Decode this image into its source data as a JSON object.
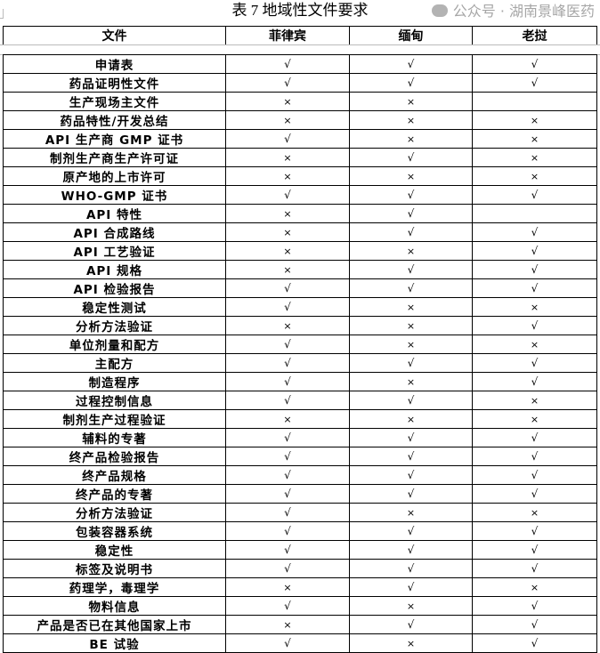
{
  "title": "表 7 地域性文件要求",
  "columns": [
    "文件",
    "菲律宾",
    "缅甸",
    "老挝"
  ],
  "marks": {
    "yes": "√",
    "no": "×"
  },
  "rows": [
    {
      "name": "申请表",
      "values": [
        "√",
        "√",
        "√"
      ]
    },
    {
      "name": "药品证明性文件",
      "values": [
        "√",
        "√",
        "√"
      ]
    },
    {
      "name": "生产现场主文件",
      "values": [
        "×",
        "×",
        ""
      ]
    },
    {
      "name": "药品特性/开发总结",
      "values": [
        "×",
        "×",
        "×"
      ]
    },
    {
      "name": "API 生产商 GMP 证书",
      "values": [
        "√",
        "×",
        "×"
      ]
    },
    {
      "name": "制剂生产商生产许可证",
      "values": [
        "×",
        "√",
        "×"
      ]
    },
    {
      "name": "原产地的上市许可",
      "values": [
        "×",
        "×",
        "×"
      ]
    },
    {
      "name": "WHO-GMP 证书",
      "values": [
        "√",
        "√",
        "√"
      ]
    },
    {
      "name": "API 特性",
      "values": [
        "×",
        "√",
        ""
      ]
    },
    {
      "name": "API 合成路线",
      "values": [
        "×",
        "√",
        "√"
      ]
    },
    {
      "name": "API 工艺验证",
      "values": [
        "×",
        "×",
        "√"
      ]
    },
    {
      "name": "API 规格",
      "values": [
        "×",
        "√",
        "√"
      ]
    },
    {
      "name": "API 检验报告",
      "values": [
        "√",
        "√",
        "√"
      ]
    },
    {
      "name": "稳定性测试",
      "values": [
        "√",
        "×",
        "×"
      ]
    },
    {
      "name": "分析方法验证",
      "values": [
        "×",
        "×",
        "√"
      ]
    },
    {
      "name": "单位剂量和配方",
      "values": [
        "√",
        "×",
        "×"
      ]
    },
    {
      "name": "主配方",
      "values": [
        "√",
        "√",
        "√"
      ]
    },
    {
      "name": "制造程序",
      "values": [
        "√",
        "×",
        "√"
      ]
    },
    {
      "name": "过程控制信息",
      "values": [
        "√",
        "√",
        "×"
      ]
    },
    {
      "name": "制剂生产过程验证",
      "values": [
        "×",
        "×",
        "×"
      ]
    },
    {
      "name": "辅料的专著",
      "values": [
        "√",
        "√",
        "√"
      ]
    },
    {
      "name": "终产品检验报告",
      "values": [
        "√",
        "√",
        "√"
      ]
    },
    {
      "name": "终产品规格",
      "values": [
        "√",
        "√",
        "√"
      ]
    },
    {
      "name": "终产品的专著",
      "values": [
        "√",
        "√",
        "√"
      ]
    },
    {
      "name": "分析方法验证",
      "values": [
        "√",
        "×",
        "×"
      ]
    },
    {
      "name": "包装容器系统",
      "values": [
        "√",
        "√",
        "√"
      ]
    },
    {
      "name": "稳定性",
      "values": [
        "√",
        "√",
        "√"
      ]
    },
    {
      "name": "标签及说明书",
      "values": [
        "√",
        "√",
        "√"
      ]
    },
    {
      "name": "药理学，毒理学",
      "values": [
        "×",
        "√",
        "×"
      ]
    },
    {
      "name": "物料信息",
      "values": [
        "√",
        "×",
        "√"
      ]
    },
    {
      "name": "产品是否已在其他国家上市",
      "values": [
        "×",
        "√",
        "√"
      ]
    },
    {
      "name": "BE 试验",
      "values": [
        "√",
        "×",
        "√"
      ]
    }
  ],
  "watermark": "公众号 · 湖南景峰医药"
}
